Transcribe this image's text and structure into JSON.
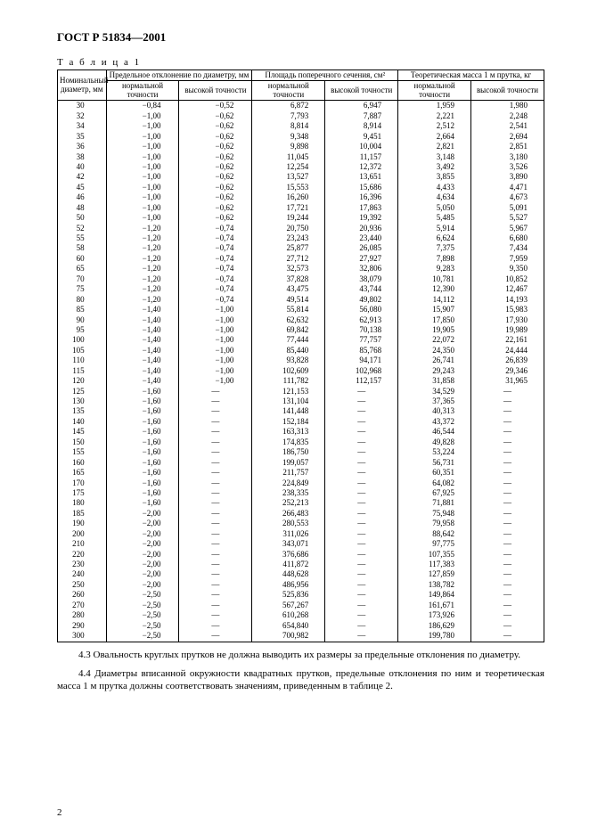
{
  "doc_title": "ГОСТ Р 51834—2001",
  "table_label": "Т а б л и ц а  1",
  "headers": {
    "diam": "Номинальный диаметр, мм",
    "dev": "Предельное отклонение по диаметру, мм",
    "area": "Площадь поперечного сечения, см²",
    "mass": "Теоретическая масса 1 м прутка, кг",
    "norm": "нормальной точности",
    "high": "высокой точности"
  },
  "rows": [
    {
      "d": "30",
      "dn": "−0,84",
      "dh": "−0,52",
      "an": "6,872",
      "ah": "6,947",
      "mn": "1,959",
      "mh": "1,980"
    },
    {
      "d": "32",
      "dn": "−1,00",
      "dh": "−0,62",
      "an": "7,793",
      "ah": "7,887",
      "mn": "2,221",
      "mh": "2,248"
    },
    {
      "d": "34",
      "dn": "−1,00",
      "dh": "−0,62",
      "an": "8,814",
      "ah": "8,914",
      "mn": "2,512",
      "mh": "2,541"
    },
    {
      "d": "35",
      "dn": "−1,00",
      "dh": "−0,62",
      "an": "9,348",
      "ah": "9,451",
      "mn": "2,664",
      "mh": "2,694"
    },
    {
      "d": "36",
      "dn": "−1,00",
      "dh": "−0,62",
      "an": "9,898",
      "ah": "10,004",
      "mn": "2,821",
      "mh": "2,851"
    },
    {
      "d": "38",
      "dn": "−1,00",
      "dh": "−0,62",
      "an": "11,045",
      "ah": "11,157",
      "mn": "3,148",
      "mh": "3,180"
    },
    {
      "d": "40",
      "dn": "−1,00",
      "dh": "−0,62",
      "an": "12,254",
      "ah": "12,372",
      "mn": "3,492",
      "mh": "3,526"
    },
    {
      "d": "42",
      "dn": "−1,00",
      "dh": "−0,62",
      "an": "13,527",
      "ah": "13,651",
      "mn": "3,855",
      "mh": "3,890"
    },
    {
      "d": "45",
      "dn": "−1,00",
      "dh": "−0,62",
      "an": "15,553",
      "ah": "15,686",
      "mn": "4,433",
      "mh": "4,471"
    },
    {
      "d": "46",
      "dn": "−1,00",
      "dh": "−0,62",
      "an": "16,260",
      "ah": "16,396",
      "mn": "4,634",
      "mh": "4,673"
    },
    {
      "d": "48",
      "dn": "−1,00",
      "dh": "−0,62",
      "an": "17,721",
      "ah": "17,863",
      "mn": "5,050",
      "mh": "5,091"
    },
    {
      "d": "50",
      "dn": "−1,00",
      "dh": "−0,62",
      "an": "19,244",
      "ah": "19,392",
      "mn": "5,485",
      "mh": "5,527"
    },
    {
      "d": "52",
      "dn": "−1,20",
      "dh": "−0,74",
      "an": "20,750",
      "ah": "20,936",
      "mn": "5,914",
      "mh": "5,967"
    },
    {
      "d": "55",
      "dn": "−1,20",
      "dh": "−0,74",
      "an": "23,243",
      "ah": "23,440",
      "mn": "6,624",
      "mh": "6,680"
    },
    {
      "d": "58",
      "dn": "−1,20",
      "dh": "−0,74",
      "an": "25,877",
      "ah": "26,085",
      "mn": "7,375",
      "mh": "7,434"
    },
    {
      "d": "60",
      "dn": "−1,20",
      "dh": "−0,74",
      "an": "27,712",
      "ah": "27,927",
      "mn": "7,898",
      "mh": "7,959"
    },
    {
      "d": "65",
      "dn": "−1,20",
      "dh": "−0,74",
      "an": "32,573",
      "ah": "32,806",
      "mn": "9,283",
      "mh": "9,350"
    },
    {
      "d": "70",
      "dn": "−1,20",
      "dh": "−0,74",
      "an": "37,828",
      "ah": "38,079",
      "mn": "10,781",
      "mh": "10,852"
    },
    {
      "d": "75",
      "dn": "−1,20",
      "dh": "−0,74",
      "an": "43,475",
      "ah": "43,744",
      "mn": "12,390",
      "mh": "12,467"
    },
    {
      "d": "80",
      "dn": "−1,20",
      "dh": "−0,74",
      "an": "49,514",
      "ah": "49,802",
      "mn": "14,112",
      "mh": "14,193"
    },
    {
      "d": "85",
      "dn": "−1,40",
      "dh": "−1,00",
      "an": "55,814",
      "ah": "56,080",
      "mn": "15,907",
      "mh": "15,983"
    },
    {
      "d": "90",
      "dn": "−1,40",
      "dh": "−1,00",
      "an": "62,632",
      "ah": "62,913",
      "mn": "17,850",
      "mh": "17,930"
    },
    {
      "d": "95",
      "dn": "−1,40",
      "dh": "−1,00",
      "an": "69,842",
      "ah": "70,138",
      "mn": "19,905",
      "mh": "19,989"
    },
    {
      "d": "100",
      "dn": "−1,40",
      "dh": "−1,00",
      "an": "77,444",
      "ah": "77,757",
      "mn": "22,072",
      "mh": "22,161"
    },
    {
      "d": "105",
      "dn": "−1,40",
      "dh": "−1,00",
      "an": "85,440",
      "ah": "85,768",
      "mn": "24,350",
      "mh": "24,444"
    },
    {
      "d": "110",
      "dn": "−1,40",
      "dh": "−1,00",
      "an": "93,828",
      "ah": "94,171",
      "mn": "26,741",
      "mh": "26,839"
    },
    {
      "d": "115",
      "dn": "−1,40",
      "dh": "−1,00",
      "an": "102,609",
      "ah": "102,968",
      "mn": "29,243",
      "mh": "29,346"
    },
    {
      "d": "120",
      "dn": "−1,40",
      "dh": "−1,00",
      "an": "111,782",
      "ah": "112,157",
      "mn": "31,858",
      "mh": "31,965"
    },
    {
      "d": "125",
      "dn": "−1,60",
      "dh": "—",
      "an": "121,153",
      "ah": "—",
      "mn": "34,529",
      "mh": "—"
    },
    {
      "d": "130",
      "dn": "−1,60",
      "dh": "—",
      "an": "131,104",
      "ah": "—",
      "mn": "37,365",
      "mh": "—"
    },
    {
      "d": "135",
      "dn": "−1,60",
      "dh": "—",
      "an": "141,448",
      "ah": "—",
      "mn": "40,313",
      "mh": "—"
    },
    {
      "d": "140",
      "dn": "−1,60",
      "dh": "—",
      "an": "152,184",
      "ah": "—",
      "mn": "43,372",
      "mh": "—"
    },
    {
      "d": "145",
      "dn": "−1,60",
      "dh": "—",
      "an": "163,313",
      "ah": "—",
      "mn": "46,544",
      "mh": "—"
    },
    {
      "d": "150",
      "dn": "−1,60",
      "dh": "—",
      "an": "174,835",
      "ah": "—",
      "mn": "49,828",
      "mh": "—"
    },
    {
      "d": "155",
      "dn": "−1,60",
      "dh": "—",
      "an": "186,750",
      "ah": "—",
      "mn": "53,224",
      "mh": "—"
    },
    {
      "d": "160",
      "dn": "−1,60",
      "dh": "—",
      "an": "199,057",
      "ah": "—",
      "mn": "56,731",
      "mh": "—"
    },
    {
      "d": "165",
      "dn": "−1,60",
      "dh": "—",
      "an": "211,757",
      "ah": "—",
      "mn": "60,351",
      "mh": "—"
    },
    {
      "d": "170",
      "dn": "−1,60",
      "dh": "—",
      "an": "224,849",
      "ah": "—",
      "mn": "64,082",
      "mh": "—"
    },
    {
      "d": "175",
      "dn": "−1,60",
      "dh": "—",
      "an": "238,335",
      "ah": "—",
      "mn": "67,925",
      "mh": "—"
    },
    {
      "d": "180",
      "dn": "−1,60",
      "dh": "—",
      "an": "252,213",
      "ah": "—",
      "mn": "71,881",
      "mh": "—"
    },
    {
      "d": "185",
      "dn": "−2,00",
      "dh": "—",
      "an": "266,483",
      "ah": "—",
      "mn": "75,948",
      "mh": "—"
    },
    {
      "d": "190",
      "dn": "−2,00",
      "dh": "—",
      "an": "280,553",
      "ah": "—",
      "mn": "79,958",
      "mh": "—"
    },
    {
      "d": "200",
      "dn": "−2,00",
      "dh": "—",
      "an": "311,026",
      "ah": "—",
      "mn": "88,642",
      "mh": "—"
    },
    {
      "d": "210",
      "dn": "−2,00",
      "dh": "—",
      "an": "343,071",
      "ah": "—",
      "mn": "97,775",
      "mh": "—"
    },
    {
      "d": "220",
      "dn": "−2,00",
      "dh": "—",
      "an": "376,686",
      "ah": "—",
      "mn": "107,355",
      "mh": "—"
    },
    {
      "d": "230",
      "dn": "−2,00",
      "dh": "—",
      "an": "411,872",
      "ah": "—",
      "mn": "117,383",
      "mh": "—"
    },
    {
      "d": "240",
      "dn": "−2,00",
      "dh": "—",
      "an": "448,628",
      "ah": "—",
      "mn": "127,859",
      "mh": "—"
    },
    {
      "d": "250",
      "dn": "−2,00",
      "dh": "—",
      "an": "486,956",
      "ah": "—",
      "mn": "138,782",
      "mh": "—"
    },
    {
      "d": "260",
      "dn": "−2,50",
      "dh": "—",
      "an": "525,836",
      "ah": "—",
      "mn": "149,864",
      "mh": "—"
    },
    {
      "d": "270",
      "dn": "−2,50",
      "dh": "—",
      "an": "567,267",
      "ah": "—",
      "mn": "161,671",
      "mh": "—"
    },
    {
      "d": "280",
      "dn": "−2,50",
      "dh": "—",
      "an": "610,268",
      "ah": "—",
      "mn": "173,926",
      "mh": "—"
    },
    {
      "d": "290",
      "dn": "−2,50",
      "dh": "—",
      "an": "654,840",
      "ah": "—",
      "mn": "186,629",
      "mh": "—"
    },
    {
      "d": "300",
      "dn": "−2,50",
      "dh": "—",
      "an": "700,982",
      "ah": "—",
      "mn": "199,780",
      "mh": "—"
    }
  ],
  "para1": "4.3 Овальность круглых прутков не должна выводить их размеры за предельные отклонения по диаметру.",
  "para2": "4.4 Диаметры вписанной окружности квадратных прутков, предельные отклонения по ним и теоретическая масса 1 м прутка должны соответствовать значениям, приведенным в таблице 2.",
  "page_number": "2"
}
